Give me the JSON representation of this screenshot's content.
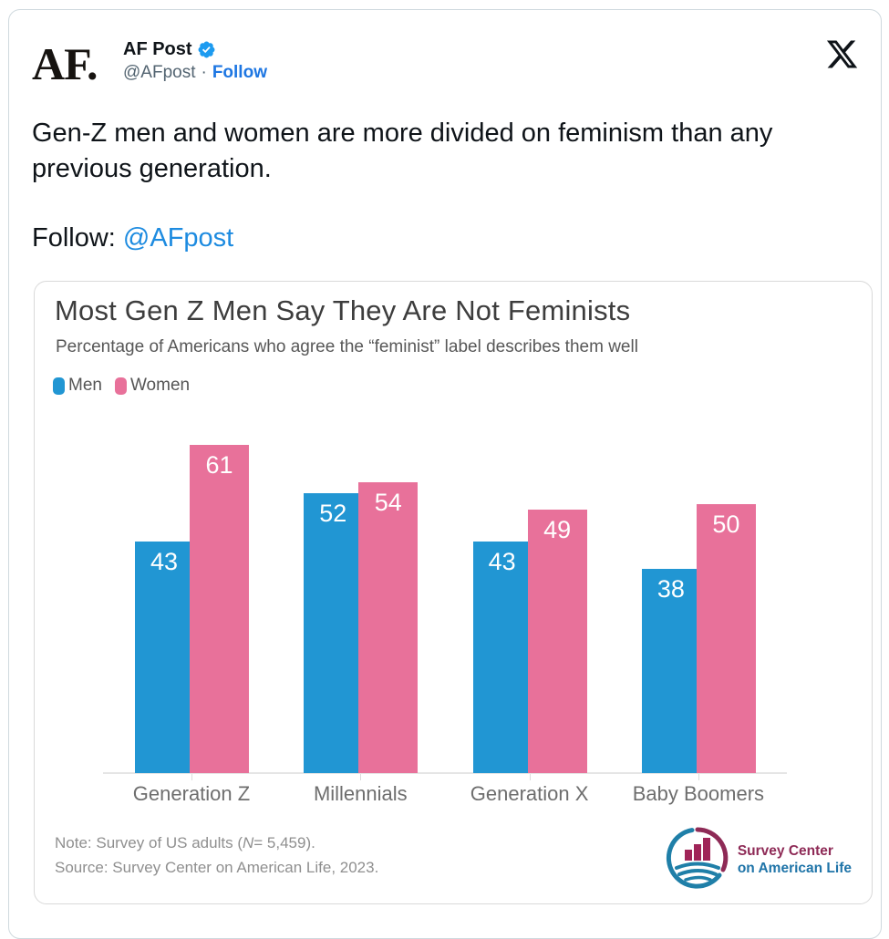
{
  "tweet": {
    "avatar_text": "AF.",
    "display_name": "AF Post",
    "handle": "@AFpost",
    "separator": "·",
    "follow_label": "Follow",
    "body": "Gen-Z men and women are more divided on feminism than any previous generation.",
    "follow_prefix": "Follow: ",
    "follow_link": "@AFpost"
  },
  "chart": {
    "title": "Most Gen Z Men Say They Are Not Feminists",
    "subtitle": "Percentage of Americans who agree the “feminist” label describes them well",
    "note_prefix": "Note: Survey of US adults (",
    "note_n": "N",
    "note_suffix": "= 5,459).",
    "source": "Source: Survey Center on American Life, 2023.",
    "brand_line1": "Survey Center",
    "brand_line2": "on American Life"
  },
  "chart_data": {
    "type": "bar",
    "categories": [
      "Generation Z",
      "Millennials",
      "Generation X",
      "Baby Boomers"
    ],
    "series": [
      {
        "name": "Men",
        "color": "#2196d3",
        "values": [
          43,
          52,
          43,
          38
        ]
      },
      {
        "name": "Women",
        "color": "#e8719a",
        "values": [
          61,
          54,
          49,
          50
        ]
      }
    ],
    "value_labels": "inside-top-white",
    "ylim": [
      0,
      65
    ],
    "grid": false,
    "legend_position": "top-left",
    "xlabel": "",
    "ylabel": ""
  },
  "colors": {
    "men_bar": "#2196d3",
    "women_bar": "#e8719a",
    "verified_badge": "#1d9bf0",
    "follow_link": "#1d76e2",
    "brand_maroon": "#8e2a56",
    "brand_teal": "#1f74a8"
  }
}
